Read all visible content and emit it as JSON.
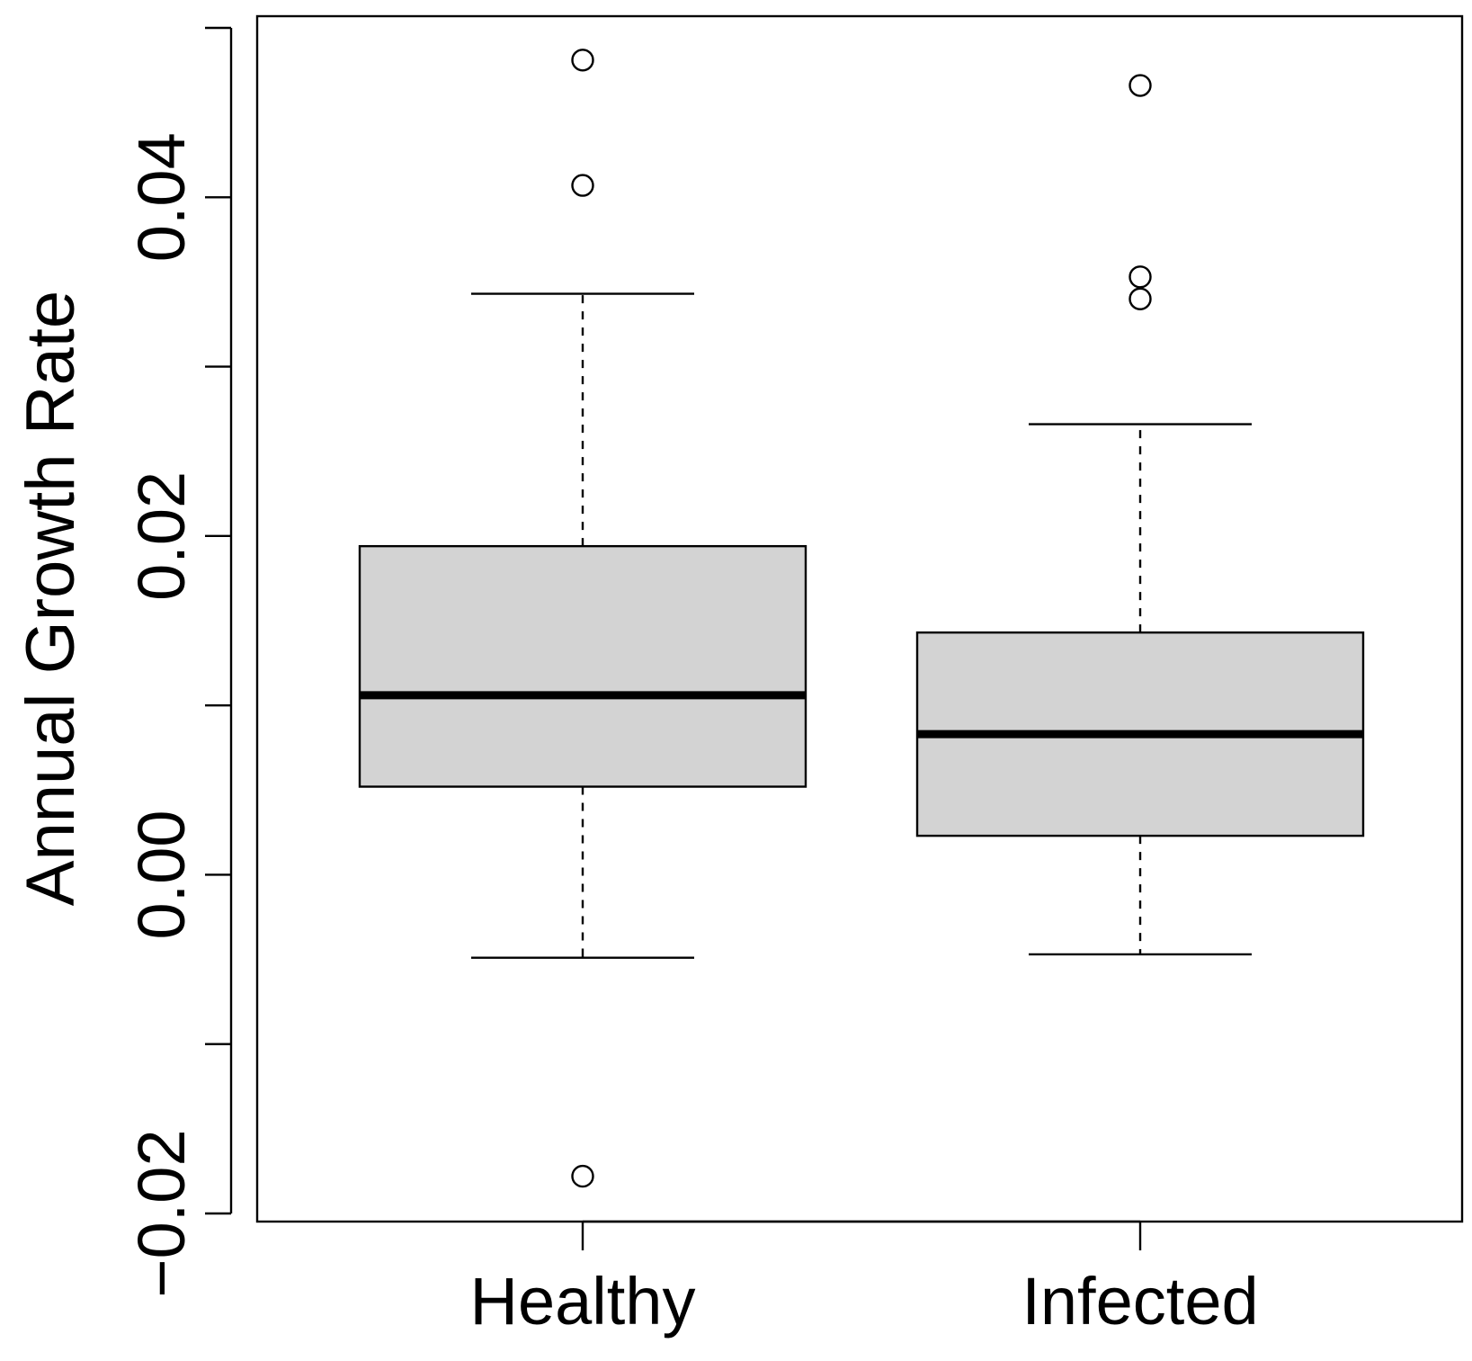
{
  "chart_data": {
    "type": "boxplot",
    "title": "",
    "xlabel": "",
    "ylabel": "Annual Growth Rate",
    "ylim": [
      -0.0205,
      0.051
    ],
    "yticks": [
      -0.02,
      -0.01,
      0.0,
      0.01,
      0.02,
      0.03,
      0.04,
      0.05
    ],
    "ytick_labels": [
      "−0.02",
      "",
      "0.00",
      "",
      "0.02",
      "",
      "0.04",
      ""
    ],
    "categories": [
      "Healthy",
      "Infected"
    ],
    "fill_color": "#d3d3d3",
    "line_color": "#000000",
    "series": [
      {
        "name": "Healthy",
        "whisker_low": -0.0049,
        "q1": 0.0052,
        "median": 0.0106,
        "q3": 0.0194,
        "whisker_high": 0.0343,
        "outliers": [
          0.0481,
          0.0407,
          -0.0178
        ]
      },
      {
        "name": "Infected",
        "whisker_low": -0.0047,
        "q1": 0.0023,
        "median": 0.0083,
        "q3": 0.0143,
        "whisker_high": 0.0266,
        "outliers": [
          0.0466,
          0.0353,
          0.034
        ]
      }
    ]
  }
}
